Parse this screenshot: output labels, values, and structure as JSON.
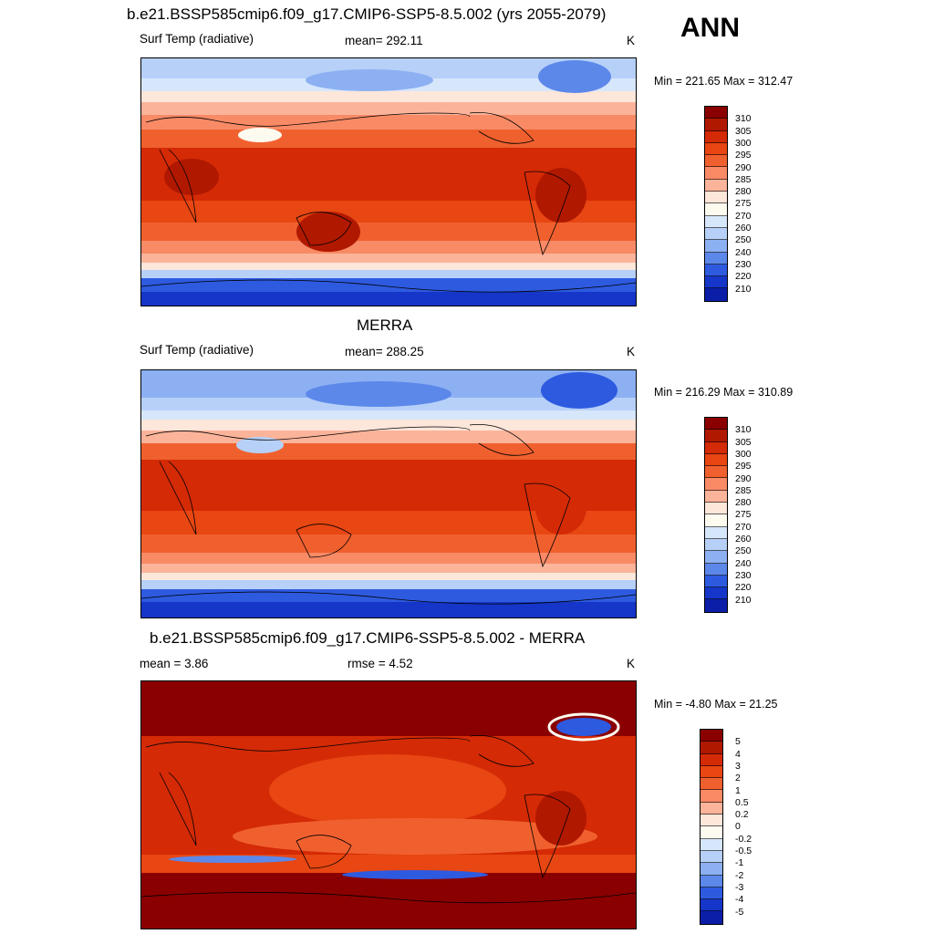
{
  "header": {
    "title": "b.e21.BSSP585cmip6.f09_g17.CMIP6-SSP5-8.5.002 (yrs 2055-2079)",
    "season": "ANN"
  },
  "panels": [
    {
      "id": "model",
      "title": "",
      "left": "Surf Temp (radiative)",
      "center": "mean= 292.11",
      "right": "K",
      "minmax": "Min = 221.65 Max = 312.47",
      "kind": "abs"
    },
    {
      "id": "obs",
      "title": "MERRA",
      "left": "Surf Temp (radiative)",
      "center": "mean= 288.25",
      "right": "K",
      "minmax": "Min = 216.29 Max = 310.89",
      "kind": "abs"
    },
    {
      "id": "diff",
      "title": "b.e21.BSSP585cmip6.f09_g17.CMIP6-SSP5-8.5.002 - MERRA",
      "left": "mean =   3.86",
      "center": "rmse =   4.52",
      "right": "K",
      "minmax": "Min =  -4.80 Max =  21.25",
      "kind": "diff"
    }
  ],
  "colorbars": {
    "abs": {
      "labels": [
        "310",
        "305",
        "300",
        "295",
        "290",
        "285",
        "280",
        "275",
        "270",
        "260",
        "250",
        "240",
        "230",
        "220",
        "210"
      ],
      "colors": [
        "#8a0000",
        "#b01800",
        "#d42a06",
        "#e84612",
        "#f0602e",
        "#f88a66",
        "#fbb49a",
        "#fde6da",
        "#fdfbf0",
        "#d6e6fb",
        "#b6d0f8",
        "#8cb0f2",
        "#5c88ea",
        "#2e5ae0",
        "#1536c8",
        "#0a1ea8"
      ]
    },
    "diff": {
      "labels": [
        "5",
        "4",
        "3",
        "2",
        "1",
        "0.5",
        "0.2",
        "0",
        "-0.2",
        "-0.5",
        "-1",
        "-2",
        "-3",
        "-4",
        "-5"
      ],
      "colors": [
        "#8a0000",
        "#b01800",
        "#d42a06",
        "#e84612",
        "#f0602e",
        "#f88a66",
        "#fbb49a",
        "#fde6da",
        "#fdfbf0",
        "#d6e6fb",
        "#b6d0f8",
        "#8cb0f2",
        "#5c88ea",
        "#2e5ae0",
        "#1536c8",
        "#0a1ea8"
      ]
    }
  },
  "chart_data": [
    {
      "type": "heatmap",
      "title": "b.e21.BSSP585cmip6.f09_g17.CMIP6-SSP5-8.5.002 (yrs 2055-2079)",
      "variable": "Surf Temp (radiative)",
      "units": "K",
      "mean": 292.11,
      "min": 221.65,
      "max": 312.47,
      "levels": [
        210,
        220,
        230,
        240,
        250,
        260,
        270,
        275,
        280,
        285,
        290,
        295,
        300,
        305,
        310
      ]
    },
    {
      "type": "heatmap",
      "title": "MERRA",
      "variable": "Surf Temp (radiative)",
      "units": "K",
      "mean": 288.25,
      "min": 216.29,
      "max": 310.89,
      "levels": [
        210,
        220,
        230,
        240,
        250,
        260,
        270,
        275,
        280,
        285,
        290,
        295,
        300,
        305,
        310
      ]
    },
    {
      "type": "heatmap",
      "title": "b.e21.BSSP585cmip6.f09_g17.CMIP6-SSP5-8.5.002 - MERRA",
      "units": "K",
      "mean": 3.86,
      "rmse": 4.52,
      "min": -4.8,
      "max": 21.25,
      "levels": [
        -5,
        -4,
        -3,
        -2,
        -1,
        -0.5,
        -0.2,
        0,
        0.2,
        0.5,
        1,
        2,
        3,
        4,
        5
      ]
    }
  ]
}
